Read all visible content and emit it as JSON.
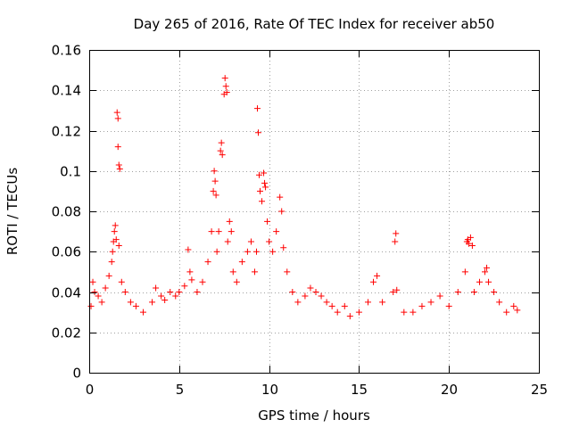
{
  "chart_data": {
    "type": "scatter",
    "title": "Day 265 of 2016, Rate Of TEC Index for receiver ab50",
    "xlabel": "GPS time / hours",
    "ylabel": "ROTI / TECUs",
    "xlim": [
      0,
      25
    ],
    "ylim": [
      0,
      0.16
    ],
    "grid": true,
    "marker": "+",
    "marker_color": "#ff0000",
    "grid_color": "#a0a0a0",
    "xticks": [
      0,
      5,
      10,
      15,
      20,
      25
    ],
    "xtick_labels": [
      "0",
      "5",
      "10",
      "15",
      "20",
      "25"
    ],
    "yticks": [
      0,
      0.02,
      0.04,
      0.06,
      0.08,
      0.1,
      0.12,
      0.14,
      0.16
    ],
    "ytick_labels": [
      "0",
      "0.02",
      "0.04",
      "0.06",
      "0.08",
      "0.1",
      "0.12",
      "0.14",
      "0.16"
    ],
    "series": [
      {
        "name": "ROTI",
        "points": [
          [
            0.1,
            0.033
          ],
          [
            0.2,
            0.045
          ],
          [
            0.3,
            0.04
          ],
          [
            0.5,
            0.038
          ],
          [
            0.7,
            0.035
          ],
          [
            0.9,
            0.042
          ],
          [
            1.1,
            0.048
          ],
          [
            1.25,
            0.055
          ],
          [
            1.3,
            0.06
          ],
          [
            1.35,
            0.065
          ],
          [
            1.4,
            0.07
          ],
          [
            1.45,
            0.073
          ],
          [
            1.5,
            0.066
          ],
          [
            1.55,
            0.129
          ],
          [
            1.6,
            0.126
          ],
          [
            1.6,
            0.112
          ],
          [
            1.65,
            0.103
          ],
          [
            1.7,
            0.101
          ],
          [
            1.65,
            0.063
          ],
          [
            1.8,
            0.045
          ],
          [
            2.0,
            0.04
          ],
          [
            2.3,
            0.035
          ],
          [
            2.6,
            0.033
          ],
          [
            3.0,
            0.03
          ],
          [
            3.5,
            0.035
          ],
          [
            3.7,
            0.042
          ],
          [
            4.0,
            0.038
          ],
          [
            4.2,
            0.036
          ],
          [
            4.5,
            0.04
          ],
          [
            4.8,
            0.038
          ],
          [
            5.0,
            0.04
          ],
          [
            5.3,
            0.043
          ],
          [
            5.5,
            0.061
          ],
          [
            5.6,
            0.05
          ],
          [
            5.7,
            0.046
          ],
          [
            6.0,
            0.04
          ],
          [
            6.3,
            0.045
          ],
          [
            6.6,
            0.055
          ],
          [
            6.8,
            0.07
          ],
          [
            6.9,
            0.09
          ],
          [
            6.95,
            0.1
          ],
          [
            7.0,
            0.095
          ],
          [
            7.05,
            0.088
          ],
          [
            7.1,
            0.06
          ],
          [
            7.2,
            0.07
          ],
          [
            7.3,
            0.11
          ],
          [
            7.35,
            0.114
          ],
          [
            7.4,
            0.108
          ],
          [
            7.5,
            0.138
          ],
          [
            7.55,
            0.146
          ],
          [
            7.6,
            0.142
          ],
          [
            7.65,
            0.139
          ],
          [
            7.7,
            0.065
          ],
          [
            7.8,
            0.075
          ],
          [
            7.9,
            0.07
          ],
          [
            8.0,
            0.05
          ],
          [
            8.2,
            0.045
          ],
          [
            8.5,
            0.055
          ],
          [
            8.8,
            0.06
          ],
          [
            9.0,
            0.065
          ],
          [
            9.2,
            0.05
          ],
          [
            9.3,
            0.06
          ],
          [
            9.35,
            0.131
          ],
          [
            9.4,
            0.119
          ],
          [
            9.45,
            0.098
          ],
          [
            9.5,
            0.09
          ],
          [
            9.6,
            0.085
          ],
          [
            9.7,
            0.099
          ],
          [
            9.75,
            0.094
          ],
          [
            9.8,
            0.092
          ],
          [
            9.9,
            0.075
          ],
          [
            10.0,
            0.065
          ],
          [
            10.2,
            0.06
          ],
          [
            10.4,
            0.07
          ],
          [
            10.6,
            0.087
          ],
          [
            10.7,
            0.08
          ],
          [
            10.8,
            0.062
          ],
          [
            11.0,
            0.05
          ],
          [
            11.3,
            0.04
          ],
          [
            11.6,
            0.035
          ],
          [
            12.0,
            0.038
          ],
          [
            12.3,
            0.042
          ],
          [
            12.6,
            0.04
          ],
          [
            12.9,
            0.038
          ],
          [
            13.2,
            0.035
          ],
          [
            13.5,
            0.033
          ],
          [
            13.8,
            0.03
          ],
          [
            14.2,
            0.033
          ],
          [
            14.5,
            0.028
          ],
          [
            15.0,
            0.03
          ],
          [
            15.5,
            0.035
          ],
          [
            15.8,
            0.045
          ],
          [
            16.0,
            0.048
          ],
          [
            16.3,
            0.035
          ],
          [
            16.9,
            0.04
          ],
          [
            17.0,
            0.065
          ],
          [
            17.05,
            0.069
          ],
          [
            17.1,
            0.041
          ],
          [
            17.5,
            0.03
          ],
          [
            18.0,
            0.03
          ],
          [
            18.5,
            0.033
          ],
          [
            19.0,
            0.035
          ],
          [
            19.5,
            0.038
          ],
          [
            20.0,
            0.033
          ],
          [
            20.5,
            0.04
          ],
          [
            20.9,
            0.05
          ],
          [
            21.0,
            0.065
          ],
          [
            21.05,
            0.066
          ],
          [
            21.1,
            0.064
          ],
          [
            21.2,
            0.067
          ],
          [
            21.3,
            0.063
          ],
          [
            21.4,
            0.04
          ],
          [
            21.7,
            0.045
          ],
          [
            22.0,
            0.05
          ],
          [
            22.1,
            0.052
          ],
          [
            22.2,
            0.045
          ],
          [
            22.5,
            0.04
          ],
          [
            22.8,
            0.035
          ],
          [
            23.2,
            0.03
          ],
          [
            23.6,
            0.033
          ],
          [
            23.8,
            0.031
          ]
        ]
      }
    ]
  }
}
